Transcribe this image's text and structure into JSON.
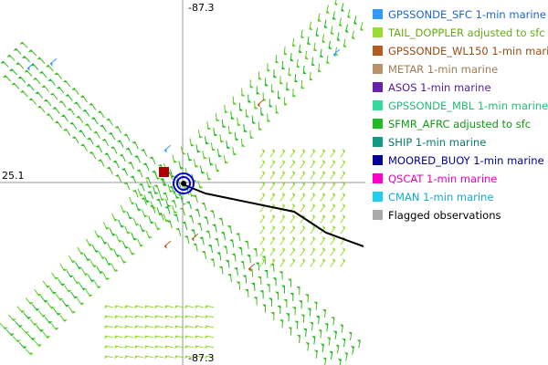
{
  "axis_labels": {
    "top": "-87.3",
    "left": "25.1",
    "bottom": "-87.3"
  },
  "legend": [
    {
      "label": "GPSSONDE_SFC 1-min marine",
      "color": "#3399ff",
      "text_color": "#1a66cc"
    },
    {
      "label": "TAIL_DOPPLER adjusted to sfc",
      "color": "#99dd33",
      "text_color": "#66aa11"
    },
    {
      "label": "GPSSONDE_WL150 1-min marine",
      "color": "#b35c1e",
      "text_color": "#9a4a10"
    },
    {
      "label": "METAR 1-min marine",
      "color": "#b8936a",
      "text_color": "#a07a50"
    },
    {
      "label": "ASOS 1-min marine",
      "color": "#6622aa",
      "text_color": "#551a99"
    },
    {
      "label": "GPSSONDE_MBL 1-min marine",
      "color": "#33dd99",
      "text_color": "#22bb77"
    },
    {
      "label": "SFMR_AFRC adjusted to sfc",
      "color": "#22bb22",
      "text_color": "#119911"
    },
    {
      "label": "SHIP 1-min marine",
      "color": "#119988",
      "text_color": "#0a7a6a"
    },
    {
      "label": "MOORED_BUOY 1-min marine",
      "color": "#000099",
      "text_color": "#000088"
    },
    {
      "label": "QSCAT 1-min marine",
      "color": "#ff00cc",
      "text_color": "#ee00bb"
    },
    {
      "label": "CMAN 1-min marine",
      "color": "#22ccee",
      "text_color": "#11aacc"
    },
    {
      "label": "Flagged observations",
      "color": "#aaaaaa",
      "text_color": "#000000"
    }
  ]
}
